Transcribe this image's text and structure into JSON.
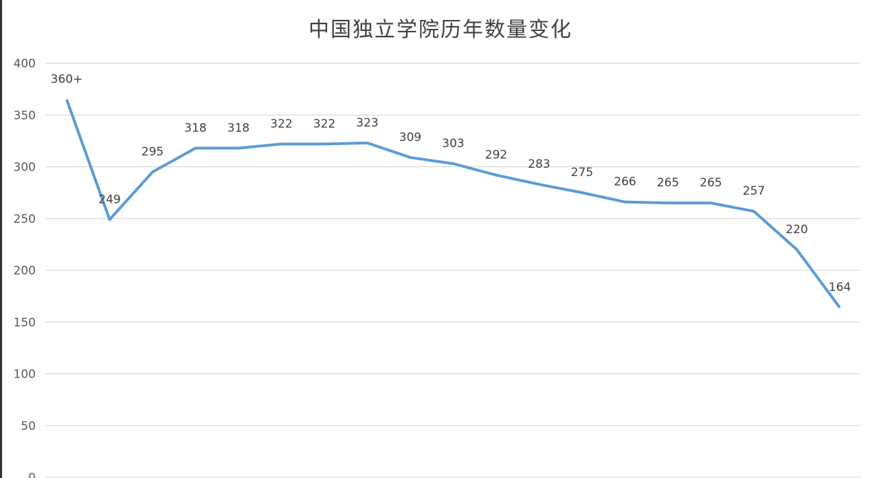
{
  "chart_data": {
    "type": "line",
    "title": "中国独立学院历年数量变化",
    "xlabel": "",
    "ylabel": "",
    "ylim": [
      0,
      400
    ],
    "yticks": [
      0,
      50,
      100,
      150,
      200,
      250,
      300,
      350,
      400
    ],
    "grid": true,
    "legend": "none",
    "line_color": "#5b9bd5",
    "series": [
      {
        "values": [
          365,
          249,
          295,
          318,
          318,
          322,
          322,
          323,
          309,
          303,
          292,
          283,
          275,
          266,
          265,
          265,
          257,
          220,
          164
        ],
        "labels": [
          "360+",
          "249",
          "295",
          "318",
          "318",
          "322",
          "322",
          "323",
          "309",
          "303",
          "292",
          "283",
          "275",
          "266",
          "265",
          "265",
          "257",
          "220",
          "164"
        ]
      }
    ]
  }
}
